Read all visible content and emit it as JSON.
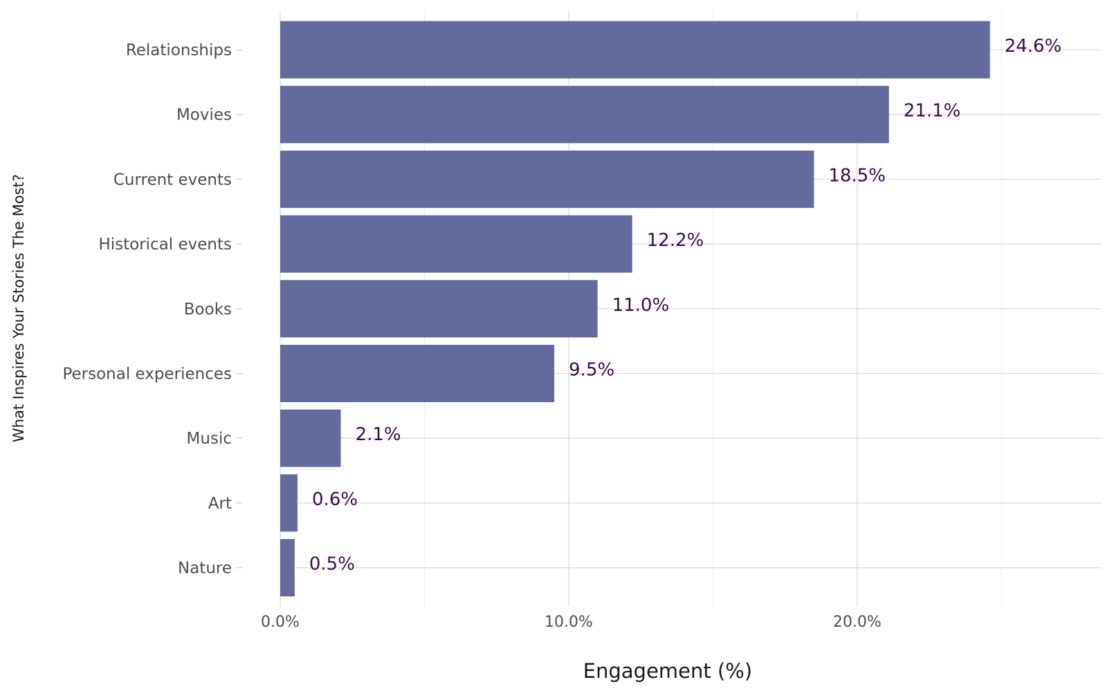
{
  "chart_data": {
    "type": "bar",
    "orientation": "horizontal",
    "categories": [
      "Relationships",
      "Movies",
      "Current events",
      "Historical events",
      "Books",
      "Personal experiences",
      "Music",
      "Art",
      "Nature"
    ],
    "values": [
      24.6,
      21.1,
      18.5,
      12.2,
      11.0,
      9.5,
      2.1,
      0.6,
      0.5
    ],
    "value_labels": [
      "24.6%",
      "21.1%",
      "18.5%",
      "12.2%",
      "11.0%",
      "9.5%",
      "2.1%",
      "0.6%",
      "0.5%"
    ],
    "xlabel": "Engagement (%)",
    "ylabel": "What Inspires Your Stories The Most?",
    "xlim": [
      0,
      28.4
    ],
    "x_ticks": [
      0,
      10,
      20
    ],
    "x_tick_labels": [
      "0.0%",
      "10.0%",
      "20.0%"
    ],
    "x_minor_ticks": [
      5,
      15,
      25
    ],
    "grid": true,
    "legend": "none",
    "colors": {
      "bar": "#5b6399",
      "label": "#3b0a4f"
    }
  }
}
